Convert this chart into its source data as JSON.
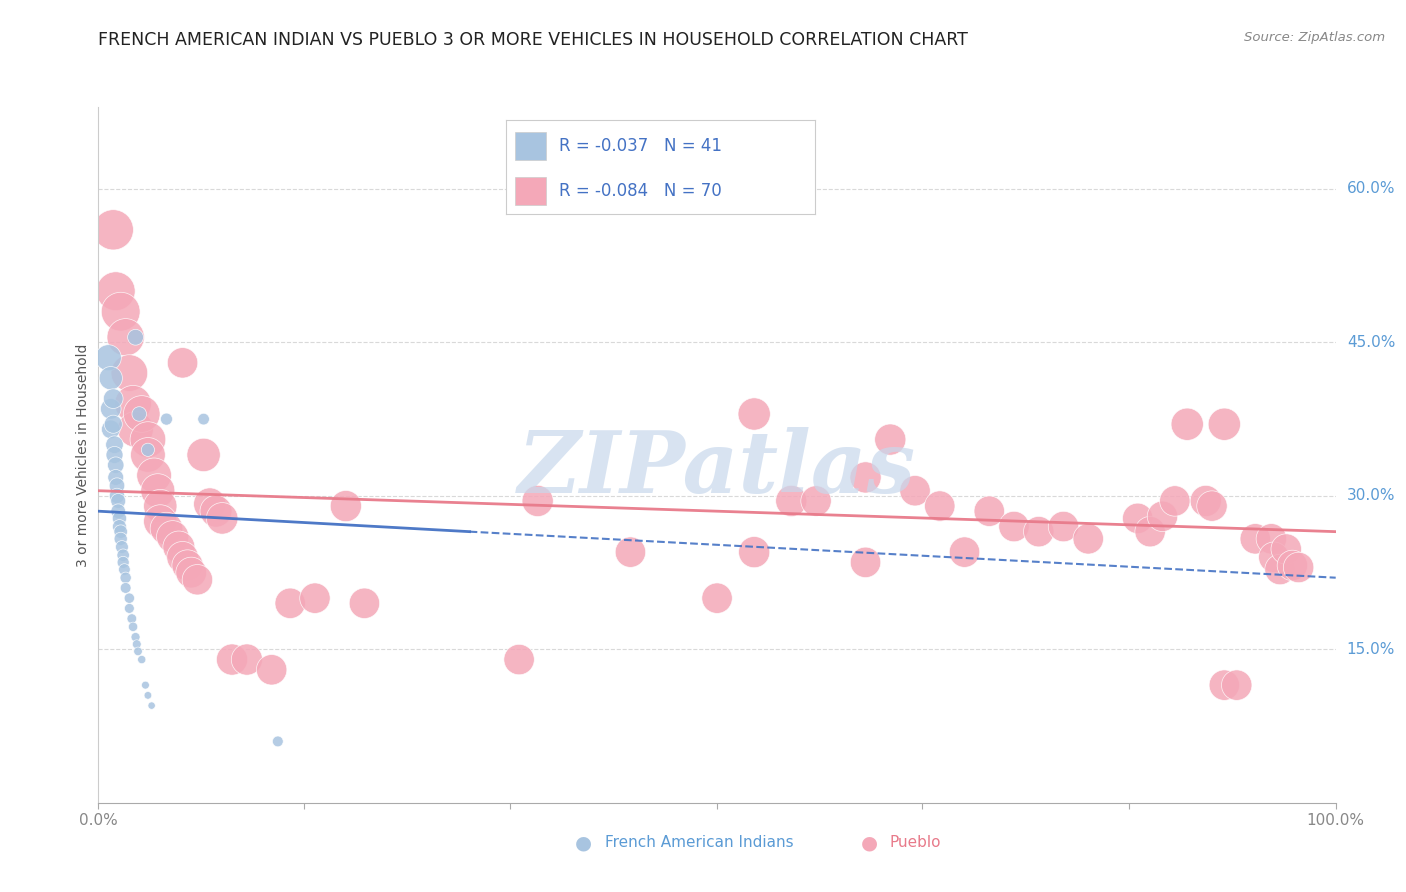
{
  "title": "FRENCH AMERICAN INDIAN VS PUEBLO 3 OR MORE VEHICLES IN HOUSEHOLD CORRELATION CHART",
  "source": "Source: ZipAtlas.com",
  "ylabel": "3 or more Vehicles in Household",
  "ytick_labels": [
    "15.0%",
    "30.0%",
    "45.0%",
    "60.0%"
  ],
  "ytick_values": [
    0.15,
    0.3,
    0.45,
    0.6
  ],
  "xtick_positions": [
    0.0,
    0.166,
    0.333,
    0.5,
    0.666,
    0.833,
    1.0
  ],
  "xlim": [
    0.0,
    1.0
  ],
  "ylim": [
    0.0,
    0.68
  ],
  "legend_series1": "French American Indians",
  "legend_series2": "Pueblo",
  "blue_color": "#a8c4e0",
  "pink_color": "#f4a8b8",
  "blue_line_color": "#4472c4",
  "pink_line_color": "#e87a8a",
  "title_color": "#222222",
  "source_color": "#888888",
  "ytick_color": "#5b9bd5",
  "xtick_color": "#888888",
  "ylabel_color": "#555555",
  "grid_color": "#d0d0d0",
  "watermark": "ZIPatlas",
  "watermark_color": "#c8d8ec",
  "background_color": "#ffffff",
  "blue_scatter": [
    [
      0.008,
      0.435
    ],
    [
      0.01,
      0.415
    ],
    [
      0.01,
      0.385
    ],
    [
      0.01,
      0.365
    ],
    [
      0.012,
      0.395
    ],
    [
      0.012,
      0.37
    ],
    [
      0.013,
      0.35
    ],
    [
      0.013,
      0.34
    ],
    [
      0.014,
      0.33
    ],
    [
      0.014,
      0.318
    ],
    [
      0.015,
      0.31
    ],
    [
      0.015,
      0.3
    ],
    [
      0.016,
      0.295
    ],
    [
      0.016,
      0.285
    ],
    [
      0.017,
      0.278
    ],
    [
      0.017,
      0.27
    ],
    [
      0.018,
      0.265
    ],
    [
      0.018,
      0.258
    ],
    [
      0.019,
      0.25
    ],
    [
      0.02,
      0.242
    ],
    [
      0.02,
      0.235
    ],
    [
      0.021,
      0.228
    ],
    [
      0.022,
      0.22
    ],
    [
      0.022,
      0.21
    ],
    [
      0.025,
      0.2
    ],
    [
      0.025,
      0.19
    ],
    [
      0.027,
      0.18
    ],
    [
      0.028,
      0.172
    ],
    [
      0.03,
      0.162
    ],
    [
      0.031,
      0.155
    ],
    [
      0.032,
      0.148
    ],
    [
      0.035,
      0.14
    ],
    [
      0.038,
      0.115
    ],
    [
      0.04,
      0.105
    ],
    [
      0.043,
      0.095
    ],
    [
      0.03,
      0.455
    ],
    [
      0.033,
      0.38
    ],
    [
      0.04,
      0.345
    ],
    [
      0.055,
      0.375
    ],
    [
      0.085,
      0.375
    ],
    [
      0.145,
      0.06
    ]
  ],
  "blue_sizes": [
    350,
    280,
    220,
    180,
    200,
    170,
    160,
    150,
    140,
    130,
    125,
    120,
    115,
    110,
    105,
    100,
    95,
    90,
    85,
    80,
    75,
    70,
    65,
    60,
    55,
    50,
    48,
    45,
    42,
    40,
    38,
    35,
    32,
    30,
    28,
    130,
    110,
    90,
    75,
    70,
    60
  ],
  "pink_scatter": [
    [
      0.012,
      0.56
    ],
    [
      0.014,
      0.5
    ],
    [
      0.018,
      0.48
    ],
    [
      0.022,
      0.455
    ],
    [
      0.025,
      0.42
    ],
    [
      0.028,
      0.39
    ],
    [
      0.03,
      0.365
    ],
    [
      0.035,
      0.38
    ],
    [
      0.04,
      0.355
    ],
    [
      0.04,
      0.34
    ],
    [
      0.045,
      0.32
    ],
    [
      0.048,
      0.305
    ],
    [
      0.05,
      0.29
    ],
    [
      0.05,
      0.275
    ],
    [
      0.055,
      0.268
    ],
    [
      0.06,
      0.26
    ],
    [
      0.065,
      0.25
    ],
    [
      0.068,
      0.24
    ],
    [
      0.072,
      0.232
    ],
    [
      0.075,
      0.225
    ],
    [
      0.08,
      0.218
    ],
    [
      0.085,
      0.34
    ],
    [
      0.09,
      0.292
    ],
    [
      0.095,
      0.285
    ],
    [
      0.1,
      0.278
    ],
    [
      0.108,
      0.14
    ],
    [
      0.12,
      0.14
    ],
    [
      0.14,
      0.13
    ],
    [
      0.155,
      0.195
    ],
    [
      0.175,
      0.2
    ],
    [
      0.2,
      0.29
    ],
    [
      0.215,
      0.195
    ],
    [
      0.34,
      0.14
    ],
    [
      0.355,
      0.295
    ],
    [
      0.43,
      0.245
    ],
    [
      0.5,
      0.2
    ],
    [
      0.53,
      0.245
    ],
    [
      0.53,
      0.38
    ],
    [
      0.56,
      0.295
    ],
    [
      0.58,
      0.295
    ],
    [
      0.62,
      0.235
    ],
    [
      0.62,
      0.318
    ],
    [
      0.64,
      0.355
    ],
    [
      0.66,
      0.305
    ],
    [
      0.68,
      0.29
    ],
    [
      0.7,
      0.245
    ],
    [
      0.72,
      0.285
    ],
    [
      0.74,
      0.27
    ],
    [
      0.76,
      0.265
    ],
    [
      0.78,
      0.27
    ],
    [
      0.8,
      0.258
    ],
    [
      0.84,
      0.278
    ],
    [
      0.85,
      0.265
    ],
    [
      0.86,
      0.28
    ],
    [
      0.87,
      0.295
    ],
    [
      0.88,
      0.37
    ],
    [
      0.895,
      0.295
    ],
    [
      0.9,
      0.29
    ],
    [
      0.91,
      0.37
    ],
    [
      0.91,
      0.115
    ],
    [
      0.92,
      0.115
    ],
    [
      0.935,
      0.258
    ],
    [
      0.948,
      0.258
    ],
    [
      0.95,
      0.24
    ],
    [
      0.955,
      0.228
    ],
    [
      0.96,
      0.248
    ],
    [
      0.965,
      0.232
    ],
    [
      0.97,
      0.23
    ],
    [
      0.068,
      0.43
    ]
  ],
  "pink_sizes": [
    70,
    65,
    65,
    60,
    58,
    58,
    55,
    58,
    55,
    52,
    52,
    50,
    48,
    48,
    46,
    45,
    44,
    43,
    42,
    41,
    40,
    48,
    45,
    44,
    43,
    42,
    42,
    40,
    40,
    40,
    42,
    40,
    40,
    42,
    40,
    40,
    42,
    45,
    42,
    40,
    40,
    42,
    42,
    40,
    40,
    40,
    40,
    40,
    40,
    40,
    40,
    40,
    40,
    40,
    40,
    45,
    42,
    40,
    45,
    40,
    40,
    40,
    40,
    40,
    40,
    40,
    40,
    40,
    40
  ]
}
